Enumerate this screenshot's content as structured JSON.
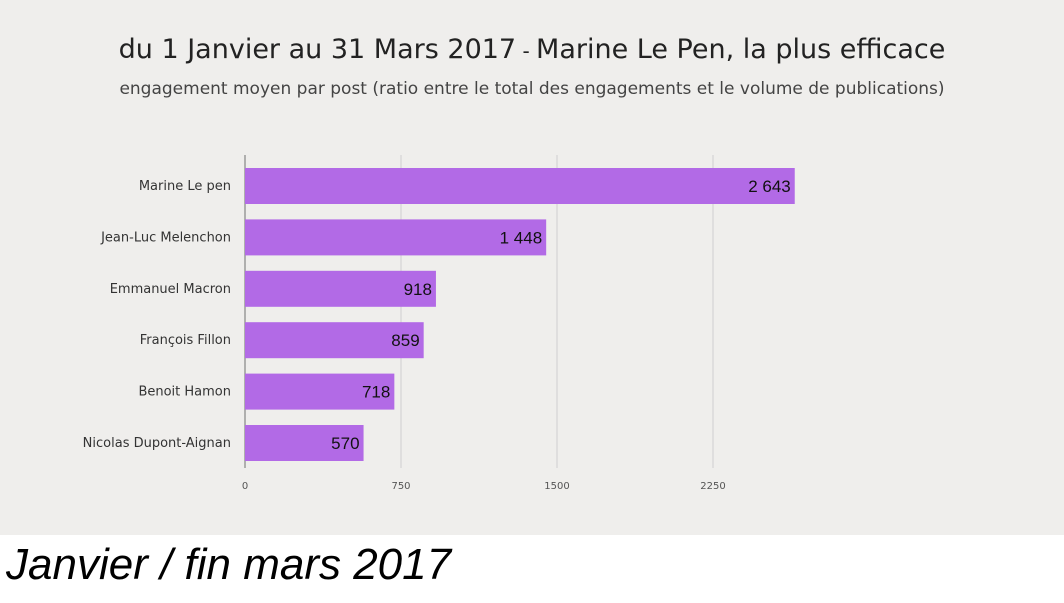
{
  "title_part1": "du 1 Janvier au 31 Mars 2017",
  "title_sep": " - ",
  "title_part2": "Marine Le Pen, la plus efficace",
  "subtitle": "engagement moyen par post (ratio entre le total des engagements et le volume de publications)",
  "caption": "Janvier / fin mars 2017",
  "colors": {
    "bar": "#b26ae6",
    "grid": "#cfcfcf",
    "background": "#efeeec"
  },
  "chart_data": {
    "type": "bar",
    "orientation": "horizontal",
    "categories": [
      "Marine Le pen",
      "Jean-Luc Melenchon",
      "Emmanuel Macron",
      "François Fillon",
      "Benoit Hamon",
      "Nicolas Dupont-Aignan"
    ],
    "values": [
      2643,
      1448,
      918,
      859,
      718,
      570
    ],
    "value_labels": [
      "2 643",
      "1 448",
      "918",
      "859",
      "718",
      "570"
    ],
    "xticks": [
      0,
      750,
      1500,
      2250
    ],
    "xtick_labels": [
      "0",
      "750",
      "1500",
      "2250"
    ],
    "xlim": [
      0,
      3000
    ],
    "grid": "vertical"
  }
}
